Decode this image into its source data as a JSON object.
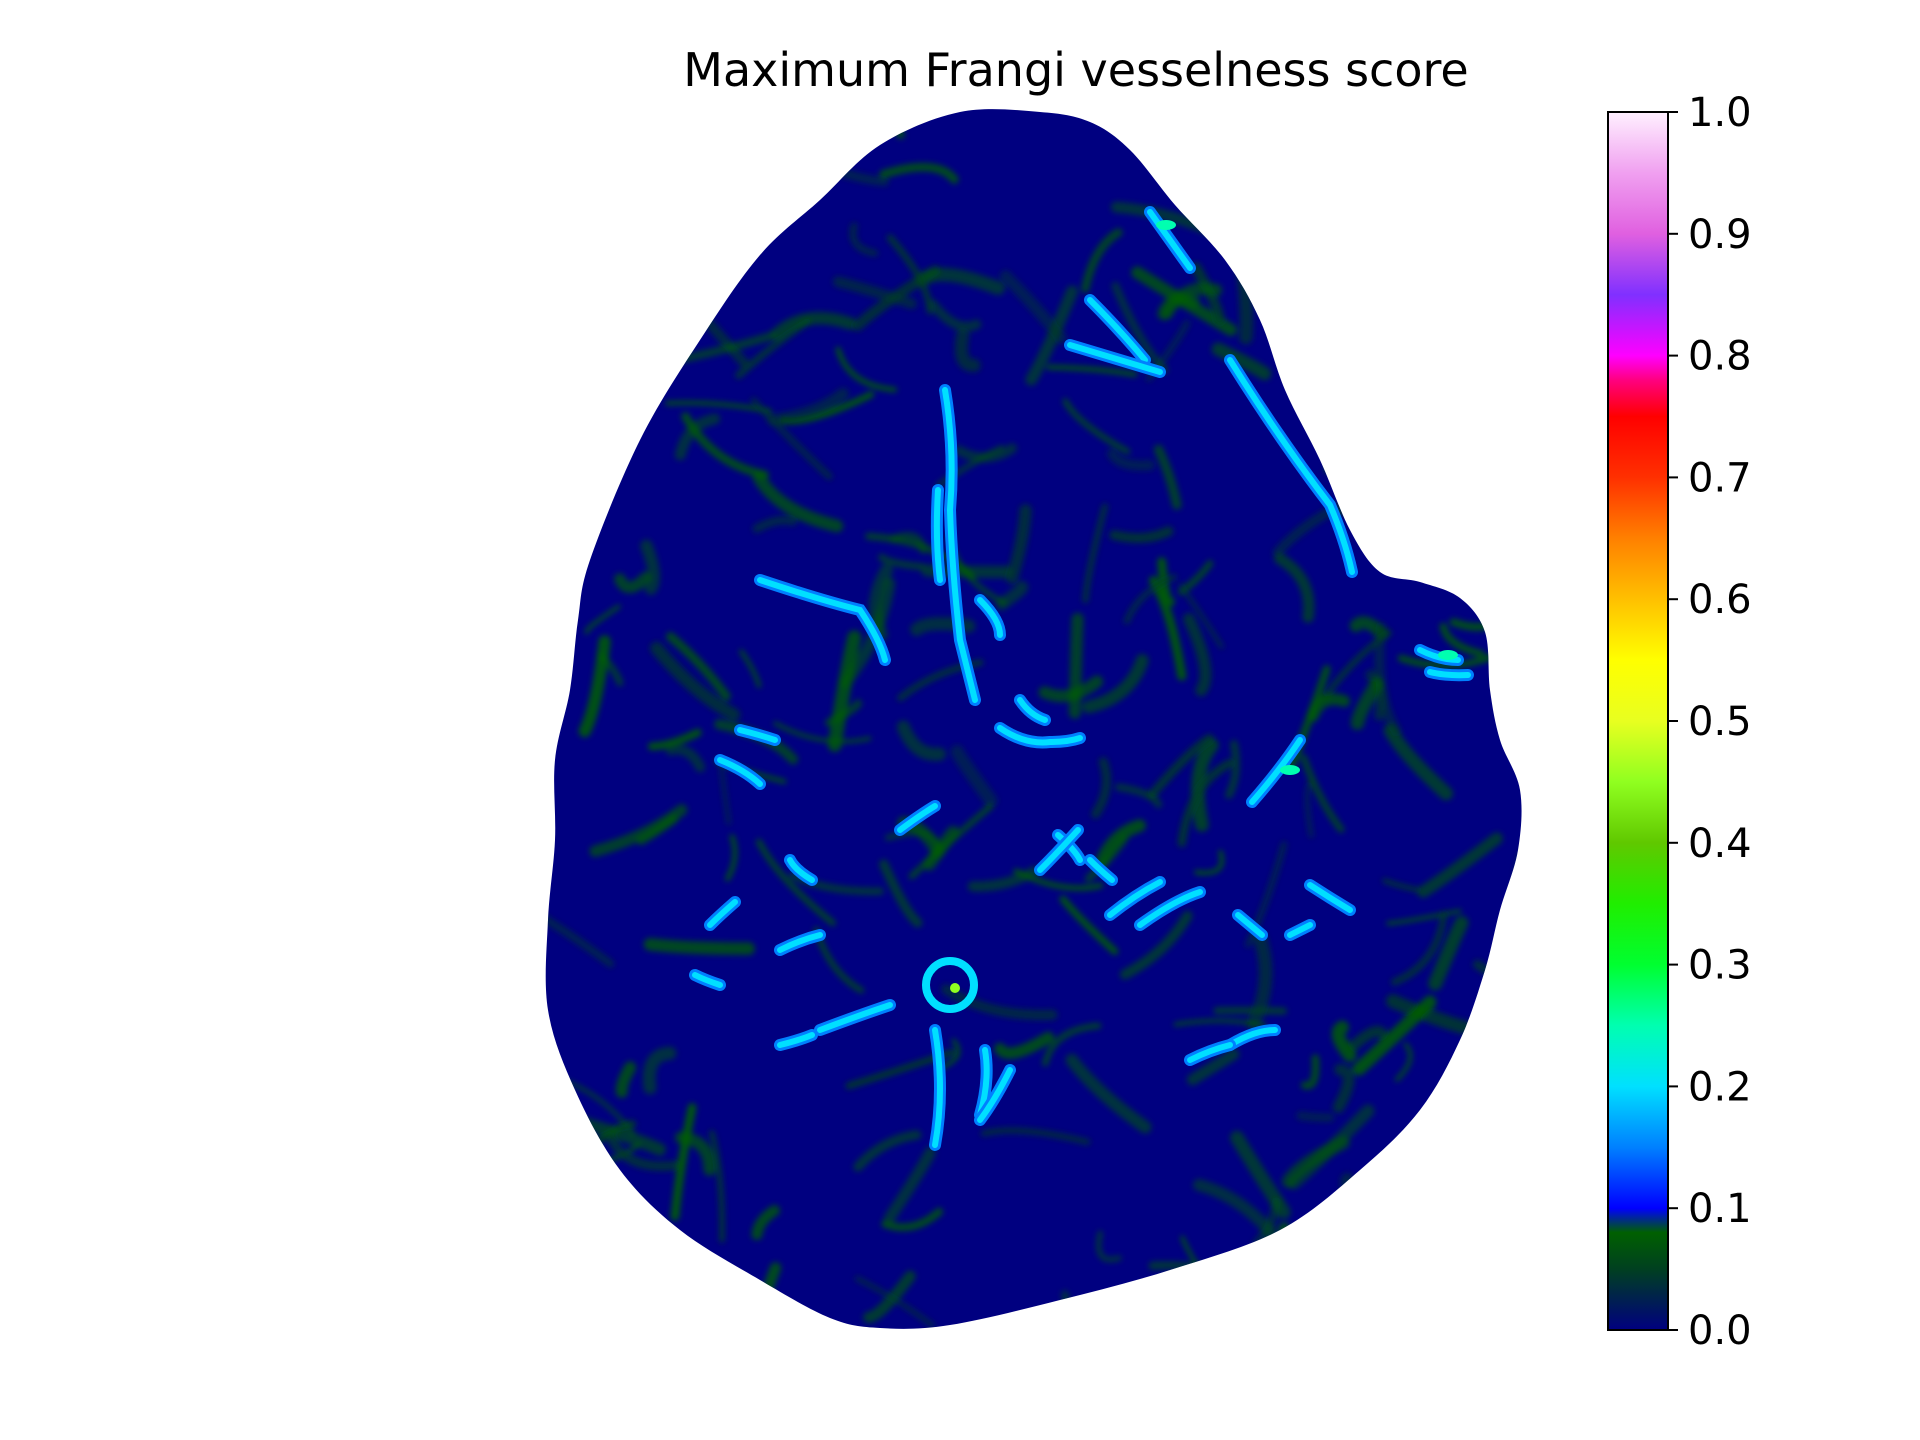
{
  "chart_data": {
    "type": "heatmap",
    "title": "Maximum Frangi vesselness score",
    "xlabel": "",
    "ylabel": "",
    "axes_visible": false,
    "value_range": [
      0.0,
      1.0
    ],
    "colormap": "gist_ncar",
    "colorbar": {
      "placement": "right",
      "ticks": [
        0.0,
        0.1,
        0.2,
        0.3,
        0.4,
        0.5,
        0.6,
        0.7,
        0.8,
        0.9,
        1.0
      ],
      "tick_labels": [
        "0.0",
        "0.1",
        "0.2",
        "0.3",
        "0.4",
        "0.5",
        "0.6",
        "0.7",
        "0.8",
        "0.9",
        "1.0"
      ]
    },
    "colormap_stops": [
      {
        "value": 0.0,
        "color": "#000080"
      },
      {
        "value": 0.05,
        "color": "#004020"
      },
      {
        "value": 0.08,
        "color": "#006000"
      },
      {
        "value": 0.1,
        "color": "#0000ff"
      },
      {
        "value": 0.15,
        "color": "#0080ff"
      },
      {
        "value": 0.2,
        "color": "#00e0ff"
      },
      {
        "value": 0.25,
        "color": "#00ffb0"
      },
      {
        "value": 0.3,
        "color": "#00ff30"
      },
      {
        "value": 0.35,
        "color": "#20ee00"
      },
      {
        "value": 0.4,
        "color": "#60c800"
      },
      {
        "value": 0.45,
        "color": "#90ff20"
      },
      {
        "value": 0.5,
        "color": "#e8ff20"
      },
      {
        "value": 0.55,
        "color": "#ffff00"
      },
      {
        "value": 0.6,
        "color": "#ffc000"
      },
      {
        "value": 0.65,
        "color": "#ff8000"
      },
      {
        "value": 0.7,
        "color": "#ff3000"
      },
      {
        "value": 0.75,
        "color": "#ff0000"
      },
      {
        "value": 0.78,
        "color": "#ff0080"
      },
      {
        "value": 0.8,
        "color": "#ff00ff"
      },
      {
        "value": 0.85,
        "color": "#8030ff"
      },
      {
        "value": 0.9,
        "color": "#e060e0"
      },
      {
        "value": 0.95,
        "color": "#f0a0f0"
      },
      {
        "value": 1.0,
        "color": "#fff0ff"
      }
    ]
  },
  "colors": {
    "background": "#ffffff",
    "tissue_base": "#000080",
    "low_response": "#006000",
    "vessel_mid": "#0080ff",
    "vessel_high": "#00e0ff",
    "vessel_peak": "#00ffb0"
  }
}
